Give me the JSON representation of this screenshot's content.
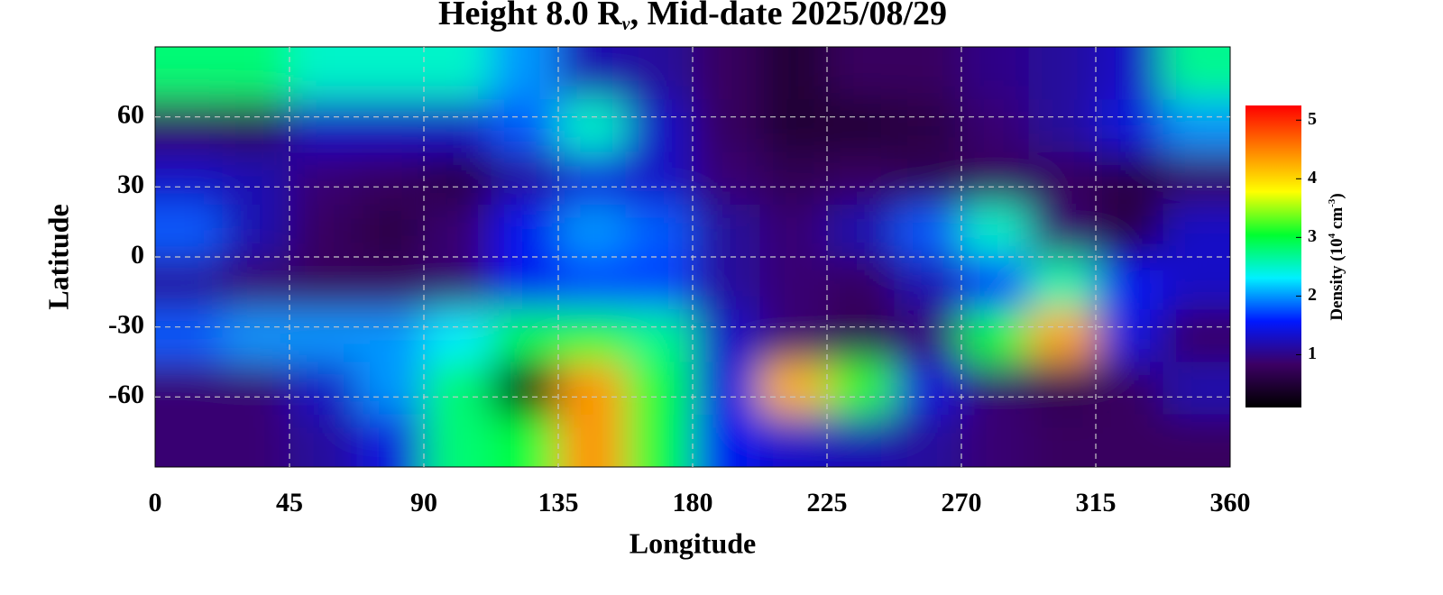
{
  "chart_data": {
    "type": "heatmap",
    "title": [
      "Height 8.0 R",
      "v",
      ", Mid-date 2025/08/29"
    ],
    "xlabel": "Longitude",
    "ylabel": "Latitude",
    "colorbar_label": [
      "Density (10",
      "4",
      " cm",
      "-3",
      ")"
    ],
    "x": [
      11.25,
      33.75,
      56.25,
      78.75,
      101.25,
      123.75,
      146.25,
      168.75,
      191.25,
      213.75,
      236.25,
      258.75,
      281.25,
      303.75,
      326.25,
      348.75
    ],
    "y": [
      78.75,
      56.25,
      33.75,
      11.25,
      -11.25,
      -33.75,
      -56.25,
      -78.75
    ],
    "z": [
      [
        2.8,
        2.8,
        2.5,
        2.5,
        2.5,
        2.0,
        1.2,
        1.1,
        0.8,
        0.5,
        0.8,
        0.8,
        1.0,
        1.1,
        1.3,
        2.7
      ],
      [
        0.8,
        0.7,
        1.3,
        1.3,
        1.3,
        1.8,
        2.5,
        1.3,
        0.8,
        0.5,
        0.5,
        0.6,
        0.9,
        1.1,
        1.4,
        2.0
      ],
      [
        1.3,
        1.2,
        0.9,
        0.8,
        0.6,
        1.1,
        1.4,
        1.3,
        0.9,
        0.7,
        0.8,
        0.7,
        0.8,
        0.8,
        0.6,
        0.8
      ],
      [
        1.8,
        1.2,
        0.8,
        0.6,
        0.9,
        1.5,
        2.0,
        1.8,
        1.1,
        0.9,
        1.2,
        1.8,
        2.5,
        0.9,
        0.6,
        1.3
      ],
      [
        1.1,
        0.9,
        0.8,
        0.8,
        0.9,
        1.5,
        1.7,
        1.7,
        1.1,
        0.9,
        0.8,
        1.2,
        1.6,
        2.6,
        1.5,
        1.3
      ],
      [
        1.8,
        2.0,
        2.0,
        2.0,
        2.3,
        2.9,
        3.0,
        2.7,
        1.3,
        0.9,
        0.7,
        0.9,
        3.0,
        4.3,
        1.4,
        0.8
      ],
      [
        0.9,
        0.9,
        1.3,
        2.0,
        2.8,
        0.1,
        4.4,
        3.0,
        1.4,
        4.2,
        3.2,
        1.4,
        0.9,
        0.7,
        0.8,
        1.2
      ],
      [
        0.9,
        0.9,
        1.1,
        1.4,
        2.8,
        3.0,
        4.4,
        3.0,
        1.5,
        1.3,
        1.2,
        1.1,
        0.9,
        0.8,
        0.8,
        0.8
      ]
    ],
    "xlim": [
      0,
      360
    ],
    "ylim": [
      -90,
      90
    ],
    "xticks": [
      0,
      45,
      90,
      135,
      180,
      225,
      270,
      315,
      360
    ],
    "yticks": [
      -60,
      -30,
      0,
      30,
      60
    ],
    "clim": [
      0.1,
      5.25
    ],
    "cticks": [
      1,
      2,
      3,
      4,
      5
    ],
    "colorscale": [
      "#000000",
      "#3c0064",
      "#0018ff",
      "#00f0ff",
      "#00ff30",
      "#ffff00",
      "#ff8000",
      "#ff0000"
    ],
    "grid": true
  }
}
